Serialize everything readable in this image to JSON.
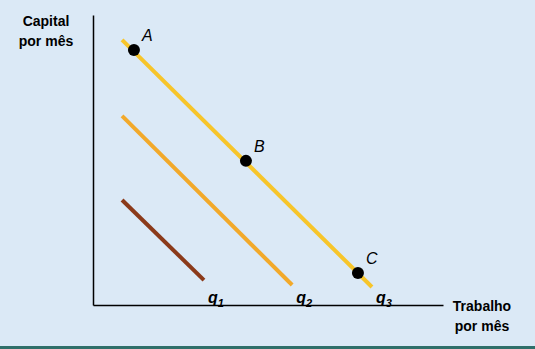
{
  "chart_data": {
    "type": "line",
    "x_label": "Trabalho por mês",
    "y_label": "Capital por mês",
    "xlim": [
      0,
      10
    ],
    "ylim": [
      0,
      10
    ],
    "tick_labels": false,
    "series": [
      {
        "name": "q1",
        "color": "#8b3a1a",
        "x": [
          0.83,
          3.17
        ],
        "values": [
          3.62,
          0.86
        ]
      },
      {
        "name": "q2",
        "color": "#f2a92a",
        "x": [
          0.83,
          5.69
        ],
        "values": [
          6.52,
          0.69
        ]
      },
      {
        "name": "q3",
        "color": "#f7c52a",
        "x": [
          0.83,
          7.97
        ],
        "values": [
          9.14,
          0.62
        ]
      }
    ],
    "points": [
      {
        "label": "A",
        "x": 1.17,
        "y": 8.79
      },
      {
        "label": "B",
        "x": 4.37,
        "y": 4.97
      },
      {
        "label": "C",
        "x": 7.57,
        "y": 1.1
      }
    ]
  }
}
